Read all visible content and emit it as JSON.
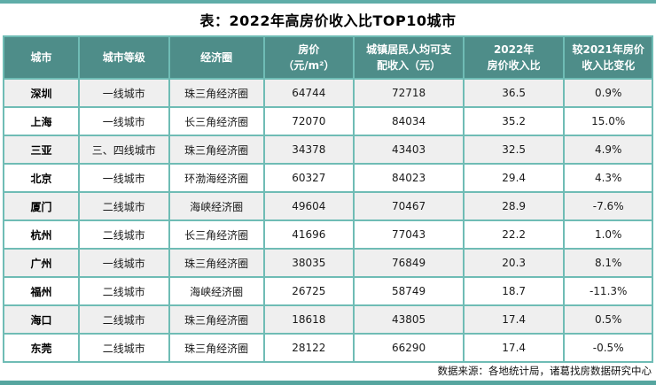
{
  "page": {
    "title": "表：2022年高房价收入比TOP10城市",
    "source": "数据来源：各地统计局，诸葛找房数据研究中心"
  },
  "colors": {
    "header_bg": "#4e8d89",
    "table_border": "#6fbcb5",
    "accent_bar_top": "#5fada8",
    "accent_bar_bottom": "#56a59f",
    "stripe_row_bg": "#efefef",
    "header_text": "#ffffff"
  },
  "table": {
    "columns": [
      {
        "key": "city",
        "label": "城市",
        "width": "11.6%"
      },
      {
        "key": "tier",
        "label": "城市等级",
        "width": "13.9%"
      },
      {
        "key": "zone",
        "label": "经济圈",
        "width": "14.6%"
      },
      {
        "key": "price",
        "label": "房价\n（元/m²）",
        "width": "13.9%"
      },
      {
        "key": "income",
        "label": "城镇居民人均可支\n配收入（元）",
        "width": "16.9%"
      },
      {
        "key": "ratio",
        "label": "2022年\n房价收入比",
        "width": "15.5%"
      },
      {
        "key": "change",
        "label": "较2021年房价\n收入比变化",
        "width": "13.6%"
      }
    ],
    "rows": [
      [
        "深圳",
        "一线城市",
        "珠三角经济圈",
        "64744",
        "72718",
        "36.5",
        "0.9%"
      ],
      [
        "上海",
        "一线城市",
        "长三角经济圈",
        "72070",
        "84034",
        "35.2",
        "15.0%"
      ],
      [
        "三亚",
        "三、四线城市",
        "珠三角经济圈",
        "34378",
        "43403",
        "32.5",
        "4.9%"
      ],
      [
        "北京",
        "一线城市",
        "环渤海经济圈",
        "60327",
        "84023",
        "29.4",
        "4.3%"
      ],
      [
        "厦门",
        "二线城市",
        "海峡经济圈",
        "49604",
        "70467",
        "28.9",
        "-7.6%"
      ],
      [
        "杭州",
        "二线城市",
        "长三角经济圈",
        "41696",
        "77043",
        "22.2",
        "1.0%"
      ],
      [
        "广州",
        "一线城市",
        "珠三角经济圈",
        "38035",
        "76849",
        "20.3",
        "8.1%"
      ],
      [
        "福州",
        "二线城市",
        "海峡经济圈",
        "26725",
        "58749",
        "18.7",
        "-11.3%"
      ],
      [
        "海口",
        "二线城市",
        "珠三角经济圈",
        "18618",
        "43805",
        "17.4",
        "0.5%"
      ],
      [
        "东莞",
        "二线城市",
        "珠三角经济圈",
        "28122",
        "66290",
        "17.4",
        "-0.5%"
      ]
    ]
  },
  "chart_data": {
    "type": "table",
    "title": "表：2022年高房价收入比TOP10城市",
    "columns": [
      "城市",
      "城市等级",
      "经济圈",
      "房价（元/m²）",
      "城镇居民人均可支配收入（元）",
      "2022年房价收入比",
      "较2021年房价收入比变化"
    ],
    "rows": [
      [
        "深圳",
        "一线城市",
        "珠三角经济圈",
        64744,
        72718,
        36.5,
        "0.9%"
      ],
      [
        "上海",
        "一线城市",
        "长三角经济圈",
        72070,
        84034,
        35.2,
        "15.0%"
      ],
      [
        "三亚",
        "三、四线城市",
        "珠三角经济圈",
        34378,
        43403,
        32.5,
        "4.9%"
      ],
      [
        "北京",
        "一线城市",
        "环渤海经济圈",
        60327,
        84023,
        29.4,
        "4.3%"
      ],
      [
        "厦门",
        "二线城市",
        "海峡经济圈",
        49604,
        70467,
        28.9,
        "-7.6%"
      ],
      [
        "杭州",
        "二线城市",
        "长三角经济圈",
        41696,
        77043,
        22.2,
        "1.0%"
      ],
      [
        "广州",
        "一线城市",
        "珠三角经济圈",
        38035,
        76849,
        20.3,
        "8.1%"
      ],
      [
        "福州",
        "二线城市",
        "海峡经济圈",
        26725,
        58749,
        18.7,
        "-11.3%"
      ],
      [
        "海口",
        "二线城市",
        "珠三角经济圈",
        18618,
        43805,
        17.4,
        "0.5%"
      ],
      [
        "东莞",
        "二线城市",
        "珠三角经济圈",
        28122,
        66290,
        17.4,
        "-0.5%"
      ]
    ],
    "source": "数据来源：各地统计局，诸葛找房数据研究中心"
  }
}
